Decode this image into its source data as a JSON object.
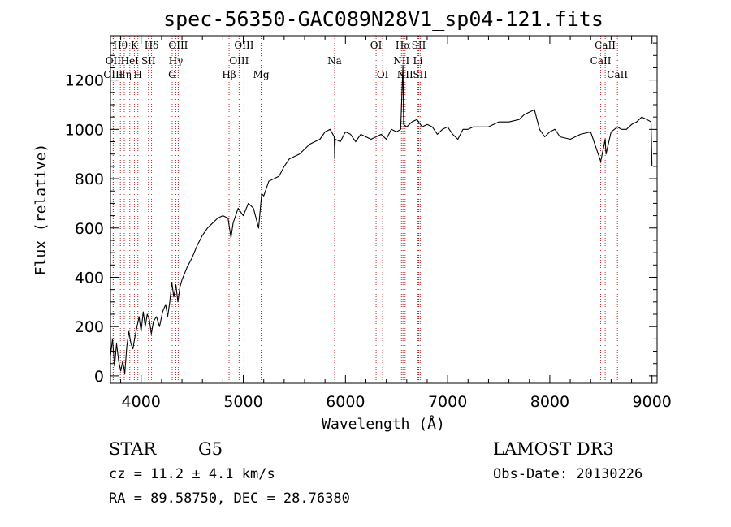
{
  "chart_data": {
    "type": "line",
    "title": "spec-56350-GAC089N28V1_sp04-121.fits",
    "xlabel": "Wavelength (Å)",
    "ylabel": "Flux (relative)",
    "xlim": [
      3700,
      9050
    ],
    "ylim": [
      -30,
      1380
    ],
    "xticks": [
      4000,
      5000,
      6000,
      7000,
      8000,
      9000
    ],
    "yticks": [
      0,
      200,
      400,
      600,
      800,
      1000,
      1200
    ],
    "grid": false,
    "series": [
      {
        "name": "spectrum",
        "x": [
          3700,
          3720,
          3740,
          3760,
          3780,
          3800,
          3820,
          3840,
          3860,
          3880,
          3900,
          3920,
          3940,
          3960,
          3980,
          4000,
          4020,
          4040,
          4060,
          4080,
          4100,
          4120,
          4150,
          4180,
          4210,
          4240,
          4260,
          4280,
          4300,
          4320,
          4340,
          4360,
          4380,
          4400,
          4450,
          4500,
          4550,
          4600,
          4650,
          4700,
          4750,
          4800,
          4850,
          4880,
          4900,
          4950,
          5000,
          5050,
          5100,
          5150,
          5180,
          5200,
          5250,
          5300,
          5350,
          5400,
          5450,
          5500,
          5550,
          5600,
          5650,
          5700,
          5750,
          5800,
          5850,
          5890,
          5895,
          5900,
          5950,
          6000,
          6050,
          6100,
          6150,
          6200,
          6250,
          6300,
          6350,
          6400,
          6450,
          6500,
          6540,
          6563,
          6570,
          6600,
          6650,
          6700,
          6750,
          6800,
          6850,
          6900,
          6950,
          7000,
          7050,
          7100,
          7150,
          7200,
          7250,
          7300,
          7400,
          7500,
          7600,
          7700,
          7750,
          7800,
          7850,
          7900,
          7950,
          8000,
          8050,
          8100,
          8200,
          8300,
          8400,
          8498,
          8542,
          8550,
          8600,
          8662,
          8700,
          8750,
          8800,
          8850,
          8900,
          8950,
          8990,
          9000
        ],
        "values": [
          80,
          150,
          40,
          130,
          60,
          20,
          60,
          10,
          120,
          180,
          130,
          110,
          160,
          200,
          240,
          180,
          260,
          200,
          250,
          230,
          170,
          220,
          240,
          200,
          260,
          290,
          240,
          300,
          380,
          320,
          370,
          300,
          360,
          390,
          440,
          480,
          530,
          570,
          600,
          620,
          640,
          650,
          640,
          560,
          620,
          680,
          650,
          700,
          680,
          600,
          740,
          730,
          790,
          800,
          810,
          850,
          880,
          890,
          900,
          920,
          940,
          950,
          960,
          990,
          1000,
          970,
          880,
          960,
          950,
          990,
          980,
          950,
          980,
          970,
          960,
          970,
          980,
          960,
          1000,
          990,
          1000,
          1260,
          1020,
          1010,
          1030,
          1040,
          1010,
          1020,
          1010,
          980,
          1000,
          1010,
          980,
          960,
          1000,
          1000,
          1010,
          1010,
          1010,
          1030,
          1030,
          1040,
          1060,
          1070,
          1080,
          1000,
          970,
          990,
          1000,
          970,
          960,
          980,
          990,
          870,
          960,
          900,
          990,
          1010,
          1000,
          1000,
          1020,
          1030,
          1050,
          1040,
          1030,
          850
        ]
      }
    ],
    "lines": [
      {
        "label": "Hθ",
        "x": 3797,
        "row": 0
      },
      {
        "label": "OII",
        "x": 3727,
        "row": 1
      },
      {
        "label": "OIII",
        "x": 3727,
        "row": 2
      },
      {
        "label": "Hη",
        "x": 3835,
        "row": 2
      },
      {
        "label": "HeI",
        "x": 3889,
        "row": 1
      },
      {
        "label": "K",
        "x": 3934,
        "row": 0
      },
      {
        "label": "H",
        "x": 3968,
        "row": 2
      },
      {
        "label": "SII",
        "x": 4072,
        "row": 1
      },
      {
        "label": "Hδ",
        "x": 4102,
        "row": 0
      },
      {
        "label": "OIII",
        "x": 4363,
        "row": 0
      },
      {
        "label": "Hγ",
        "x": 4340,
        "row": 1
      },
      {
        "label": "G",
        "x": 4304,
        "row": 2
      },
      {
        "label": "Hβ",
        "x": 4861,
        "row": 2
      },
      {
        "label": "OIII",
        "x": 5007,
        "row": 0
      },
      {
        "label": "OIII",
        "x": 4959,
        "row": 1
      },
      {
        "label": "Mg",
        "x": 5175,
        "row": 2
      },
      {
        "label": "Na",
        "x": 5894,
        "row": 1
      },
      {
        "label": "OI",
        "x": 6300,
        "row": 0
      },
      {
        "label": "OI",
        "x": 6364,
        "row": 2
      },
      {
        "label": "Hα",
        "x": 6563,
        "row": 0
      },
      {
        "label": "NII",
        "x": 6548,
        "row": 1
      },
      {
        "label": "NII",
        "x": 6584,
        "row": 2
      },
      {
        "label": "SII",
        "x": 6717,
        "row": 0
      },
      {
        "label": "Li",
        "x": 6708,
        "row": 1
      },
      {
        "label": "SII",
        "x": 6731,
        "row": 2
      },
      {
        "label": "CaII",
        "x": 8542,
        "row": 0
      },
      {
        "label": "CaII",
        "x": 8498,
        "row": 1
      },
      {
        "label": "CaII",
        "x": 8662,
        "row": 2
      }
    ]
  },
  "info": {
    "class": "STAR",
    "subclass": "G5",
    "survey": "LAMOST DR3",
    "cz": "cz = 11.2 ± 4.1 km/s",
    "obs_date": "Obs-Date: 20130226",
    "coords": "RA =  89.58750, DEC =  28.76380"
  },
  "colors": {
    "line_marker": "#cc2222",
    "spectrum": "#000000"
  }
}
